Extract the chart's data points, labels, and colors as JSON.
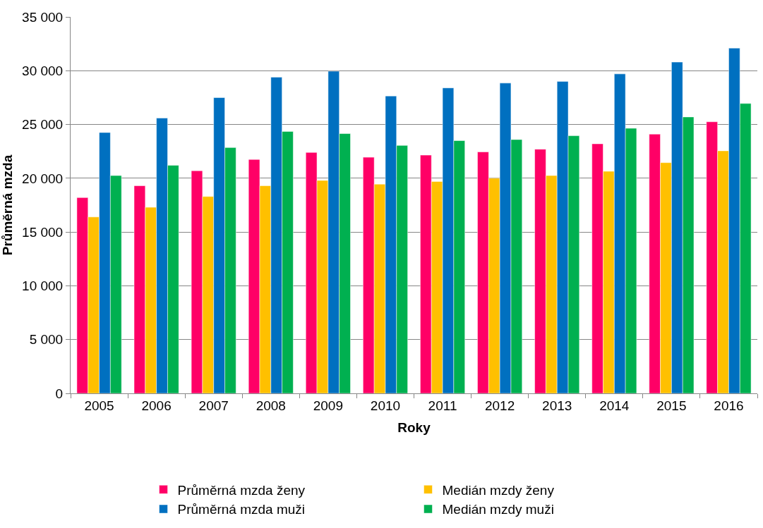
{
  "chart_data": {
    "type": "bar",
    "xlabel": "Roky",
    "ylabel": "Průměrná mzda",
    "categories": [
      "2005",
      "2006",
      "2007",
      "2008",
      "2009",
      "2010",
      "2011",
      "2012",
      "2013",
      "2014",
      "2015",
      "2016"
    ],
    "series": [
      {
        "name": "Průměrná mzda ženy",
        "color": "#ff0066",
        "values": [
          18200,
          19300,
          20700,
          21750,
          22400,
          21950,
          22150,
          22450,
          22700,
          23200,
          24100,
          25250
        ]
      },
      {
        "name": "Medián mzdy ženy",
        "color": "#ffc000",
        "values": [
          16400,
          17300,
          18300,
          19300,
          19800,
          19450,
          19700,
          20000,
          20250,
          20650,
          21450,
          22550
        ]
      },
      {
        "name": "Průměrná mzda muži",
        "color": "#0070c0",
        "values": [
          24250,
          25600,
          27500,
          29400,
          29950,
          27650,
          28400,
          28850,
          29000,
          29700,
          30800,
          32100
        ]
      },
      {
        "name": "Medián mzdy muži",
        "color": "#00b050",
        "values": [
          20250,
          21200,
          22850,
          24350,
          24150,
          23050,
          23500,
          23600,
          23950,
          24650,
          25700,
          26950
        ]
      }
    ],
    "ylim": [
      0,
      35000
    ],
    "yticks": [
      0,
      {
        "value": 5000,
        "label": "5 000"
      },
      {
        "value": 10000,
        "label": "10 000"
      },
      {
        "value": 15000,
        "label": "15 000"
      },
      {
        "value": 20000,
        "label": "20 000"
      },
      {
        "value": 25000,
        "label": "25 000"
      },
      {
        "value": 30000,
        "label": "30 000"
      },
      {
        "value": 35000,
        "label": "35 000"
      }
    ],
    "grid": "y",
    "legend": "bottom"
  }
}
